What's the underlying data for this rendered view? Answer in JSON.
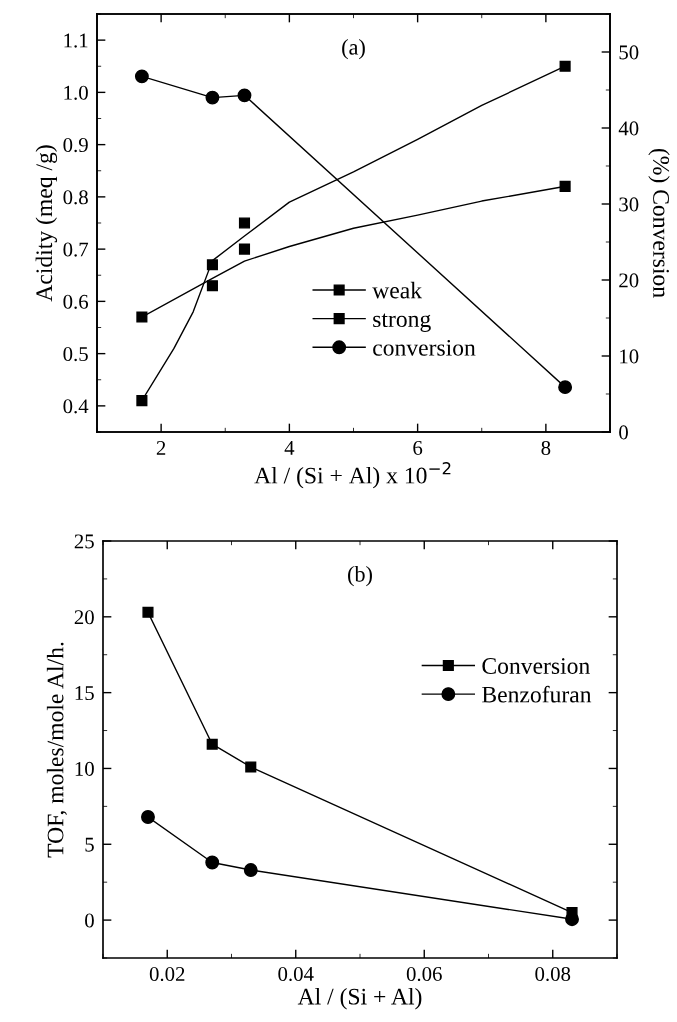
{
  "chart_data": [
    {
      "type": "scatter",
      "xlabel": "Al / (Si + Al) x 10$^{−2}$",
      "ylabel": "Acidity (meq /g)",
      "y2label": "(%) Conversion",
      "annotations": [
        "(a)"
      ],
      "xlim": [
        1,
        9
      ],
      "xticks": [
        2,
        4,
        6,
        8
      ],
      "ylim": [
        0.35,
        1.15
      ],
      "yticks": [
        0.4,
        0.5,
        0.6,
        0.7,
        0.8,
        0.9,
        {
          "value": 1,
          "label": "1.0"
        },
        1.1
      ],
      "y2lim": [
        0,
        55
      ],
      "y2ticks": [
        0,
        10,
        20,
        30,
        40,
        50
      ],
      "legend": "center",
      "grid": false,
      "x": [
        1.7,
        2.8,
        3.3,
        8.3
      ],
      "series": [
        {
          "name": "weak",
          "type": "scatter",
          "marker": "square",
          "color": "#000000",
          "values": [
            0.41,
            0.67,
            0.75,
            1.05
          ]
        },
        {
          "name": "strong",
          "type": "scatter",
          "marker": "square",
          "color": "#000000",
          "values": [
            0.57,
            0.63,
            0.7,
            0.82
          ]
        },
        {
          "name": "conversion",
          "type": "line",
          "marker": "circle",
          "axis": "y2",
          "color": "#000000",
          "values": [
            46.8,
            44.0,
            44.3,
            5.9
          ]
        },
        {
          "type": "line",
          "marker": "none",
          "color": "#000000",
          "x": [
            1.7,
            2.2,
            2.5,
            2.8,
            3.3,
            4,
            5,
            6,
            7,
            8.3
          ],
          "values": [
            0.41,
            0.51,
            0.58,
            0.678,
            0.725,
            0.79,
            0.848,
            0.91,
            0.975,
            1.05
          ]
        },
        {
          "type": "line",
          "marker": "none",
          "color": "#000000",
          "x": [
            1.7,
            2.8,
            3.3,
            4,
            5,
            6,
            7,
            8.3
          ],
          "values": [
            0.57,
            0.644,
            0.677,
            0.705,
            0.74,
            0.765,
            0.792,
            0.82
          ]
        }
      ]
    },
    {
      "type": "line",
      "xlabel": "Al / (Si + Al)",
      "ylabel": "TOF, moles/mole Al/h.",
      "annotations": [
        "(b)"
      ],
      "xlim": [
        0.01,
        0.09
      ],
      "xticks": [
        0.02,
        0.04,
        0.06,
        0.08
      ],
      "ylim": [
        -2.5,
        25
      ],
      "yticks": [
        0,
        5,
        10,
        15,
        20,
        25
      ],
      "legend": "right",
      "grid": false,
      "x": [
        0.017,
        0.027,
        0.033,
        0.083
      ],
      "series": [
        {
          "name": "Conversion",
          "marker": "square",
          "color": "#000000",
          "values": [
            20.3,
            11.6,
            10.1,
            0.5
          ]
        },
        {
          "name": "Benzofuran",
          "marker": "circle",
          "color": "#000000",
          "values": [
            6.8,
            3.8,
            3.3,
            0.06
          ]
        }
      ]
    }
  ]
}
